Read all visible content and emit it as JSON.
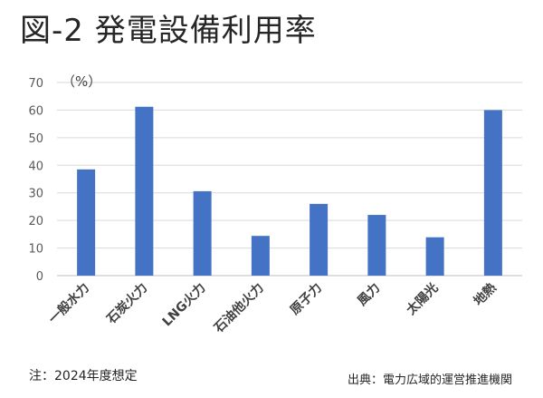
{
  "title": "図-2 発電設備利用率",
  "note": "注：2024年度想定",
  "source": "出典：電力広域的運営推進機関",
  "chart_data": {
    "type": "bar",
    "unit_label": "（%）",
    "categories": [
      "一般水力",
      "石炭火力",
      "LNG火力",
      "石油他火力",
      "原子力",
      "風力",
      "太陽光",
      "地熱"
    ],
    "values": [
      38.5,
      61.2,
      30.6,
      14.4,
      26.0,
      22.0,
      13.9,
      60.0
    ],
    "ylim": [
      0,
      70
    ],
    "yticks": [
      0,
      10,
      20,
      30,
      40,
      50,
      60,
      70
    ],
    "bar_color": "#4472C4",
    "grid": true,
    "grid_color": "#d9d9d9"
  }
}
